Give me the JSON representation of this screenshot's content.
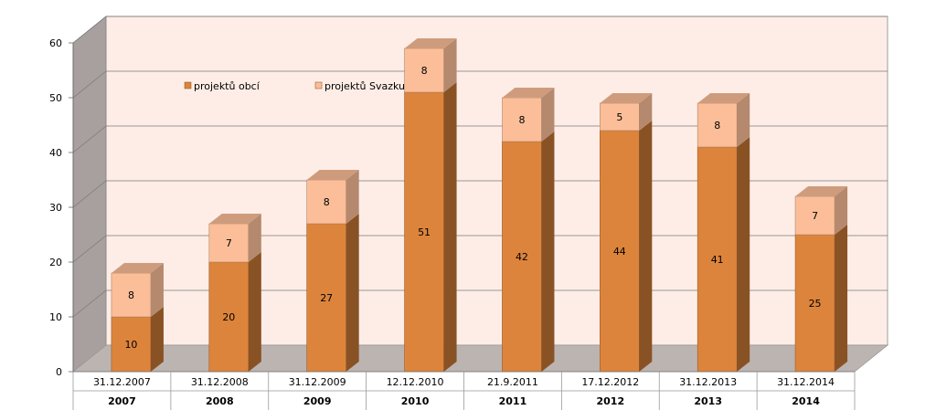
{
  "chart_data": {
    "type": "bar",
    "stacked": true,
    "categories": [
      "31.12.2007",
      "31.12.2008",
      "31.12.2009",
      "12.12.2010",
      "21.9.2011",
      "17.12.2012",
      "31.12.2013",
      "31.12.2014"
    ],
    "years": [
      "2007",
      "2008",
      "2009",
      "2010",
      "2011",
      "2012",
      "2013",
      "2014"
    ],
    "series": [
      {
        "name": "projektů obcí",
        "values": [
          10,
          20,
          27,
          51,
          42,
          44,
          41,
          25
        ],
        "color": "#dd843c"
      },
      {
        "name": "projektů Svazku",
        "values": [
          8,
          7,
          8,
          8,
          8,
          5,
          8,
          7
        ],
        "color": "#fbbe98"
      }
    ],
    "ylim": [
      0,
      60
    ],
    "yticks": [
      0,
      10,
      20,
      30,
      40,
      50,
      60
    ],
    "grid": true,
    "legend": "top-left",
    "colors": {
      "back_wall": "#fdede6",
      "side_wall": "#a8a09e",
      "floor": "#bcb4b1",
      "gridline": "#7a7a7a"
    }
  }
}
